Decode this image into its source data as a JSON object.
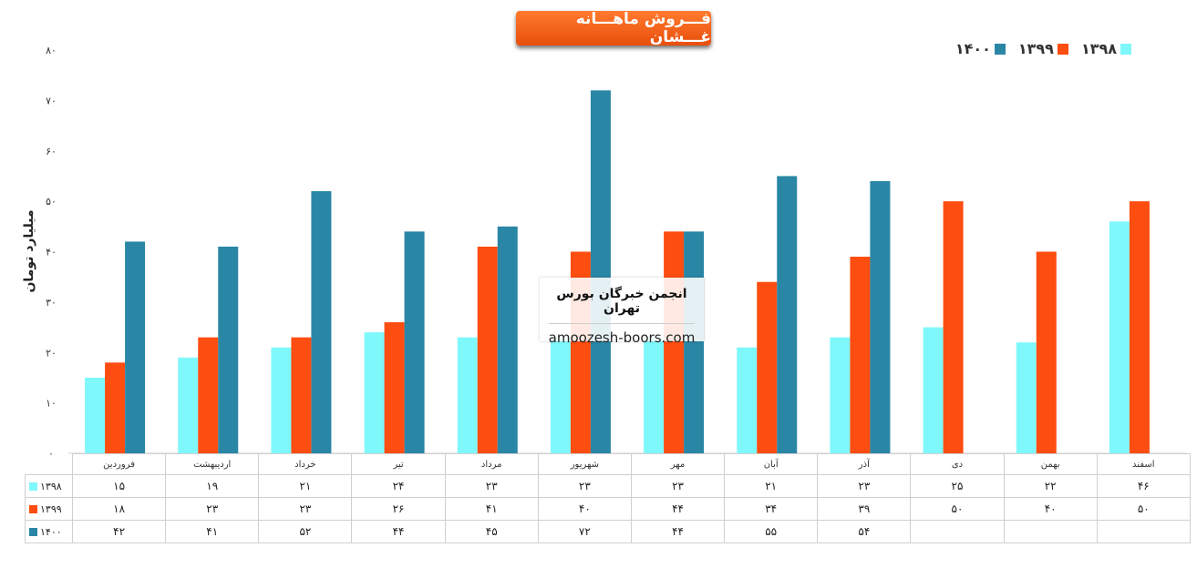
{
  "colors": {
    "s1398": "#7ff8fb",
    "s1399": "#fe4d10",
    "s1400": "#2a86a5"
  },
  "chart_data": {
    "type": "bar",
    "title": "فـــروش ماهـــانه غـــشان",
    "ylabel": "میلیارد تومان",
    "ylim": [
      0,
      80
    ],
    "yticks": [
      "۰",
      "۱۰",
      "۲۰",
      "۳۰",
      "۴۰",
      "۵۰",
      "۶۰",
      "۷۰",
      "۸۰"
    ],
    "categories": [
      "فروردین",
      "اردیبهشت",
      "خرداد",
      "تیر",
      "مرداد",
      "شهریور",
      "مهر",
      "آبان",
      "آذر",
      "دی",
      "بهمن",
      "اسفند"
    ],
    "series": [
      {
        "name": "۱۳۹۸",
        "values": [
          15,
          19,
          21,
          24,
          23,
          23,
          23,
          21,
          23,
          25,
          22,
          46
        ],
        "labels": [
          "۱۵",
          "۱۹",
          "۲۱",
          "۲۴",
          "۲۳",
          "۲۳",
          "۲۳",
          "۲۱",
          "۲۳",
          "۲۵",
          "۲۲",
          "۴۶"
        ]
      },
      {
        "name": "۱۳۹۹",
        "values": [
          18,
          23,
          23,
          26,
          41,
          40,
          44,
          34,
          39,
          50,
          40,
          50
        ],
        "labels": [
          "۱۸",
          "۲۳",
          "۲۳",
          "۲۶",
          "۴۱",
          "۴۰",
          "۴۴",
          "۳۴",
          "۳۹",
          "۵۰",
          "۴۰",
          "۵۰"
        ]
      },
      {
        "name": "۱۴۰۰",
        "values": [
          42,
          41,
          52,
          44,
          45,
          72,
          44,
          55,
          54,
          null,
          null,
          null
        ],
        "labels": [
          "۴۲",
          "۴۱",
          "۵۲",
          "۴۴",
          "۴۵",
          "۷۲",
          "۴۴",
          "۵۵",
          "۵۴",
          "",
          "",
          ""
        ]
      }
    ],
    "legend": [
      "۱۳۹۸",
      "۱۳۹۹",
      "۱۴۰۰"
    ],
    "legend_position": "top-right",
    "grid": false
  },
  "watermark": {
    "title": "انجمن خبرگان بورس تهران",
    "url": "amoozesh-boors.com"
  }
}
